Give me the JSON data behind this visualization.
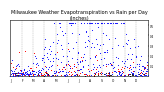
{
  "title": "Milwaukee Weather Evapotranspiration vs Rain per Day\n(Inches)",
  "title_fontsize": 3.5,
  "bg_color": "#ffffff",
  "plot_bg": "#ffffff",
  "blue_color": "#0000ff",
  "red_color": "#ff0000",
  "black_color": "#000000",
  "vline_color": "#888888",
  "ylim": [
    0.0,
    0.55
  ],
  "xlim": [
    0,
    366
  ],
  "num_points": 366,
  "vlines": [
    31,
    59,
    90,
    120,
    151,
    181,
    212,
    243,
    273,
    304,
    334
  ],
  "yticks": [
    0.1,
    0.2,
    0.3,
    0.4,
    0.5
  ],
  "month_starts": [
    0,
    31,
    59,
    90,
    120,
    151,
    181,
    212,
    243,
    273,
    304,
    334
  ],
  "xtick_labels": [
    "J",
    "F",
    "M",
    "A",
    "M",
    "J",
    "J",
    "A",
    "S",
    "O",
    "N",
    "D"
  ]
}
